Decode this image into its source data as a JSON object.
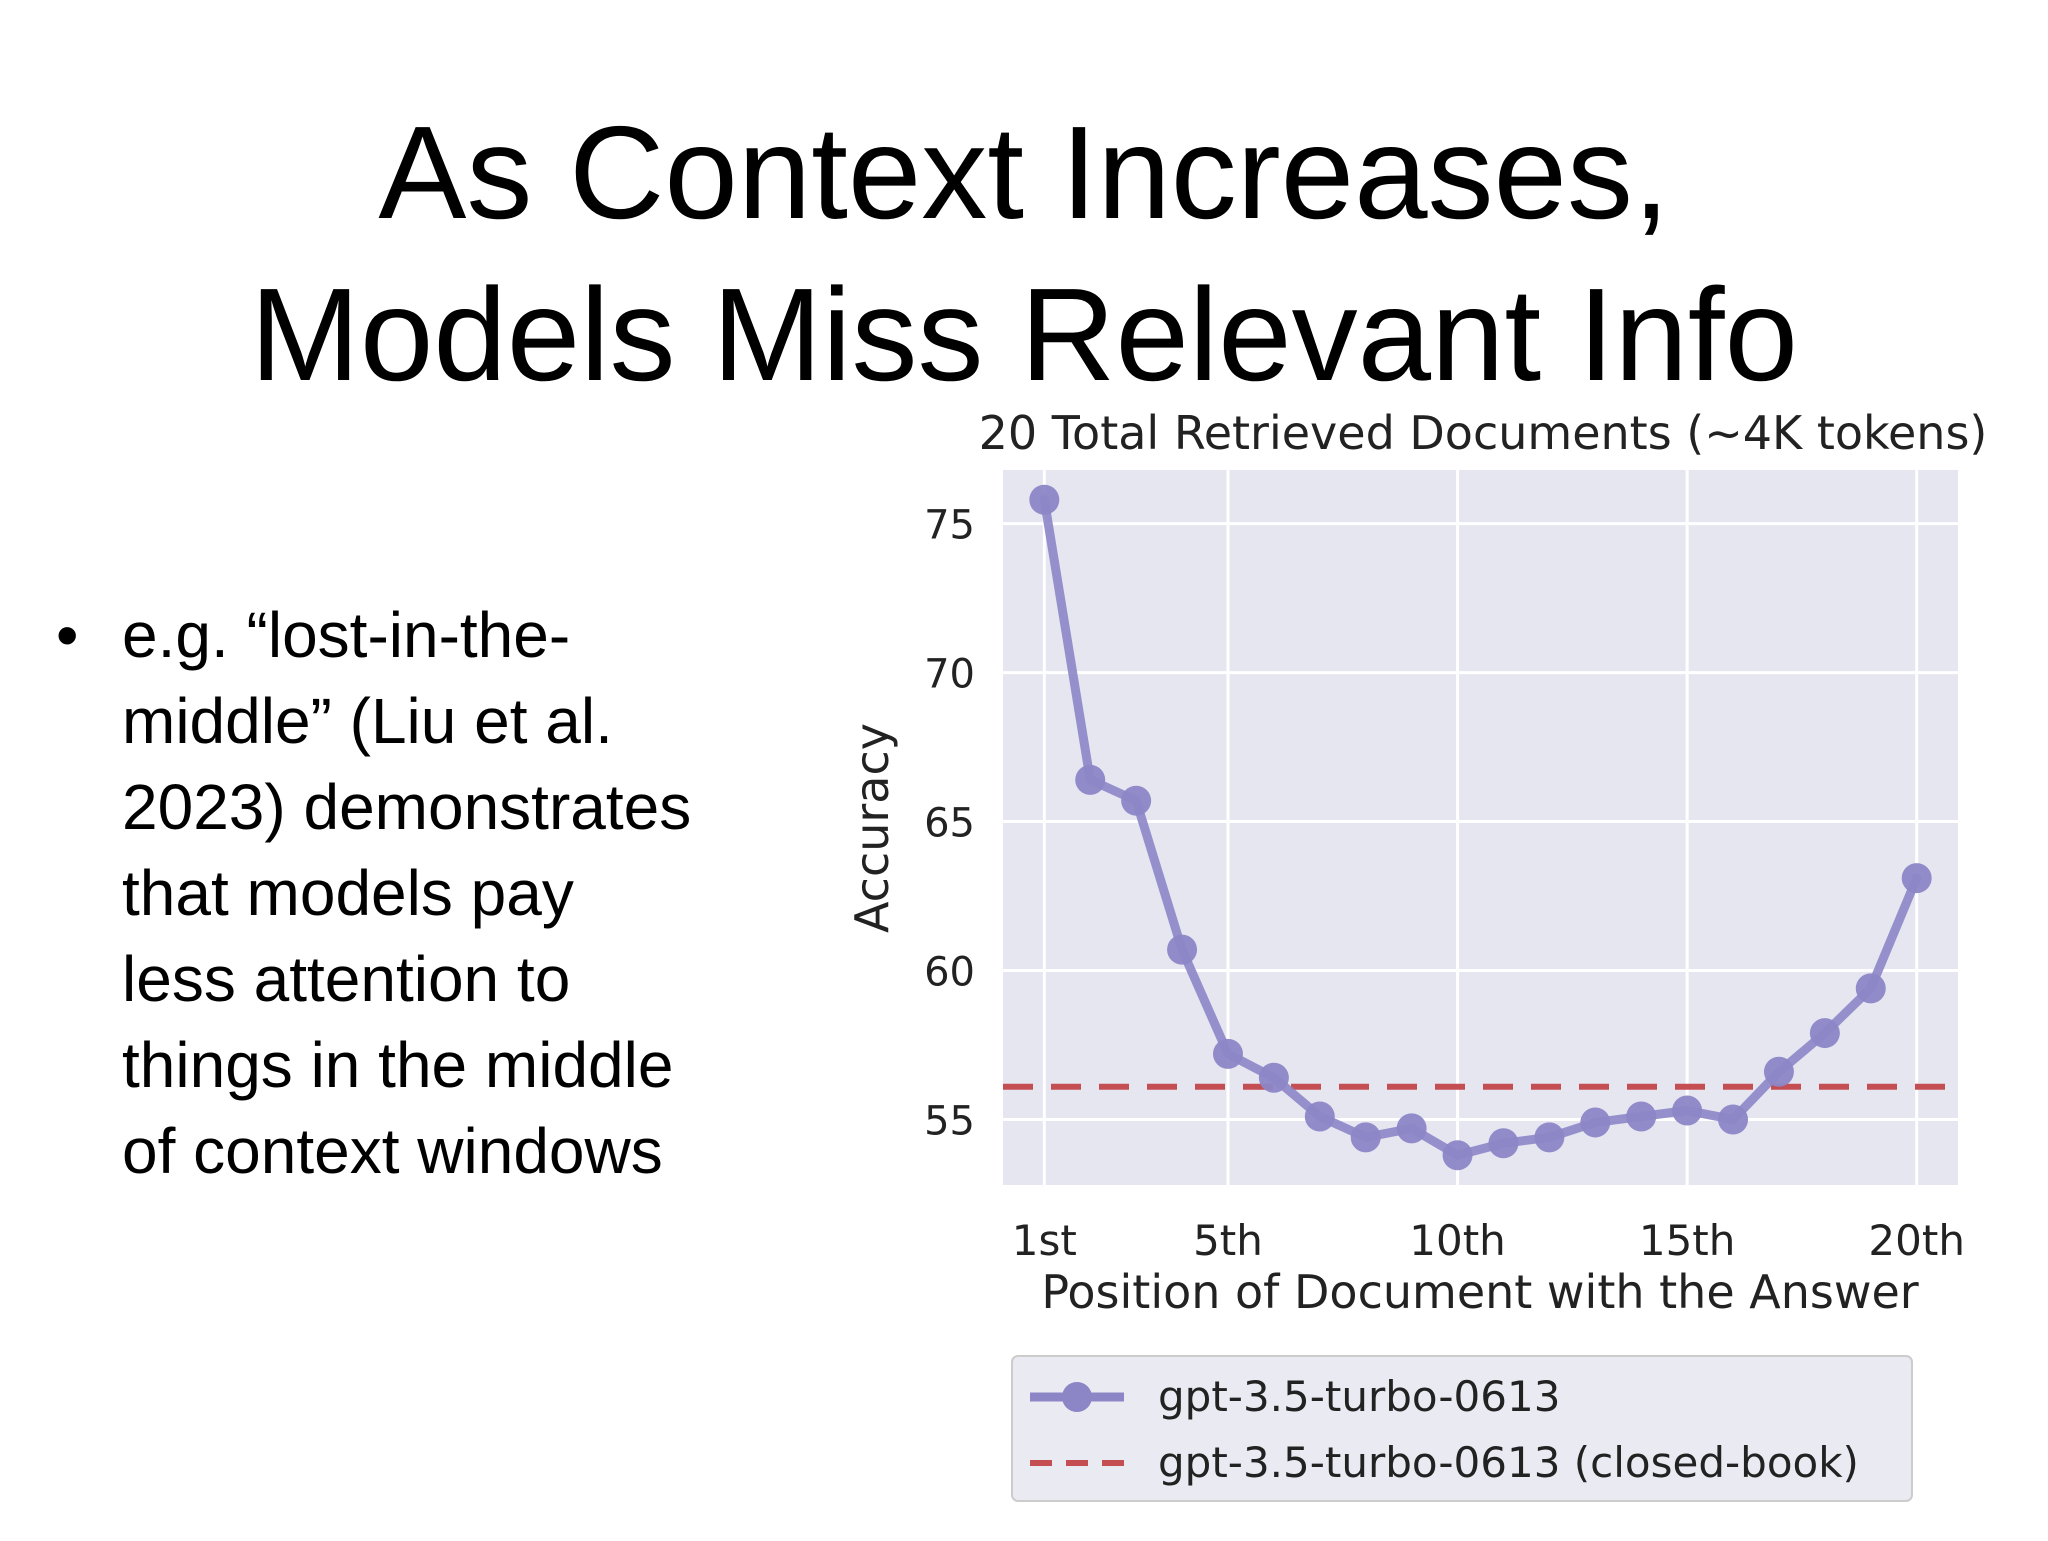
{
  "slide": {
    "title_lines": [
      "As Context Increases,",
      "Models Miss Relevant Info"
    ],
    "bullets": [
      {
        "lines": [
          "e.g. “lost-in-the-",
          "middle” (Liu et al.",
          "2023) demonstrates",
          "that models pay",
          "less attention to",
          "things in the middle",
          "of context windows"
        ]
      }
    ]
  },
  "chart_data": {
    "type": "line",
    "title": "20 Total Retrieved Documents (~4K tokens)",
    "xlabel": "Position of Document with the Answer",
    "ylabel": "Accuracy",
    "x": [
      1,
      2,
      3,
      4,
      5,
      6,
      7,
      8,
      9,
      10,
      11,
      12,
      13,
      14,
      15,
      16,
      17,
      18,
      19,
      20
    ],
    "xticks": [
      1,
      5,
      10,
      15,
      20
    ],
    "xtick_labels": [
      "1st",
      "5th",
      "10th",
      "15th",
      "20th"
    ],
    "yticks": [
      55,
      60,
      65,
      70,
      75
    ],
    "ylim": [
      52.8,
      76.8
    ],
    "xlim": [
      0.1,
      20.9
    ],
    "grid": true,
    "series": [
      {
        "name": "gpt-3.5-turbo-0613",
        "style": "solid-markers",
        "color": "#8c86c6",
        "values": [
          75.8,
          66.4,
          65.7,
          60.7,
          57.2,
          56.4,
          55.1,
          54.4,
          54.7,
          53.8,
          54.2,
          54.4,
          54.9,
          55.1,
          55.3,
          55.0,
          56.6,
          57.9,
          59.4,
          63.1
        ]
      },
      {
        "name": "gpt-3.5-turbo-0613 (closed-book)",
        "style": "dashed",
        "color": "#c44e52",
        "values": [
          56.1,
          56.1,
          56.1,
          56.1,
          56.1,
          56.1,
          56.1,
          56.1,
          56.1,
          56.1,
          56.1,
          56.1,
          56.1,
          56.1,
          56.1,
          56.1,
          56.1,
          56.1,
          56.1,
          56.1
        ]
      }
    ],
    "legend_position": "below",
    "plot_background": "#e6e6f1",
    "grid_color": "#ffffff"
  }
}
